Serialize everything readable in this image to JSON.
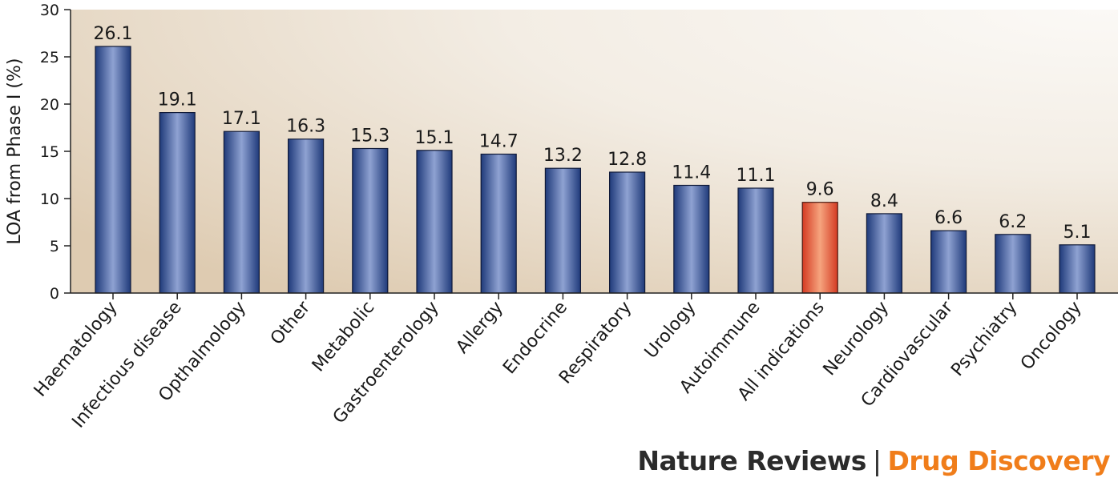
{
  "chart_data": {
    "type": "bar",
    "ylabel": "LOA from Phase I (%)",
    "ylim": [
      0,
      30
    ],
    "yticks": [
      0,
      5,
      10,
      15,
      20,
      25,
      30
    ],
    "categories": [
      "Haematology",
      "Infectious disease",
      "Opthalmology",
      "Other",
      "Metabolic",
      "Gastroenterology",
      "Allergy",
      "Endocrine",
      "Respiratory",
      "Urology",
      "Autoimmune",
      "All indications",
      "Neurology",
      "Cardiovascular",
      "Psychiatry",
      "Oncology"
    ],
    "values": [
      26.1,
      19.1,
      17.1,
      16.3,
      15.3,
      15.1,
      14.7,
      13.2,
      12.8,
      11.4,
      11.1,
      9.6,
      8.4,
      6.6,
      6.2,
      5.1
    ],
    "value_labels": [
      "26.1",
      "19.1",
      "17.1",
      "16.3",
      "15.3",
      "15.1",
      "14.7",
      "13.2",
      "12.8",
      "11.4",
      "11.1",
      "9.6",
      "8.4",
      "6.6",
      "6.2",
      "5.1"
    ],
    "highlight_category": "All indications",
    "colors": {
      "bar": "#2f4c8e",
      "bar_highlight": "#e2503a",
      "background_light": "#f6f3ee",
      "background_dark": "#e3d5c1"
    },
    "grid": false
  },
  "credit": {
    "journal": "Nature Reviews",
    "separator": "|",
    "subtitle": "Drug Discovery"
  }
}
